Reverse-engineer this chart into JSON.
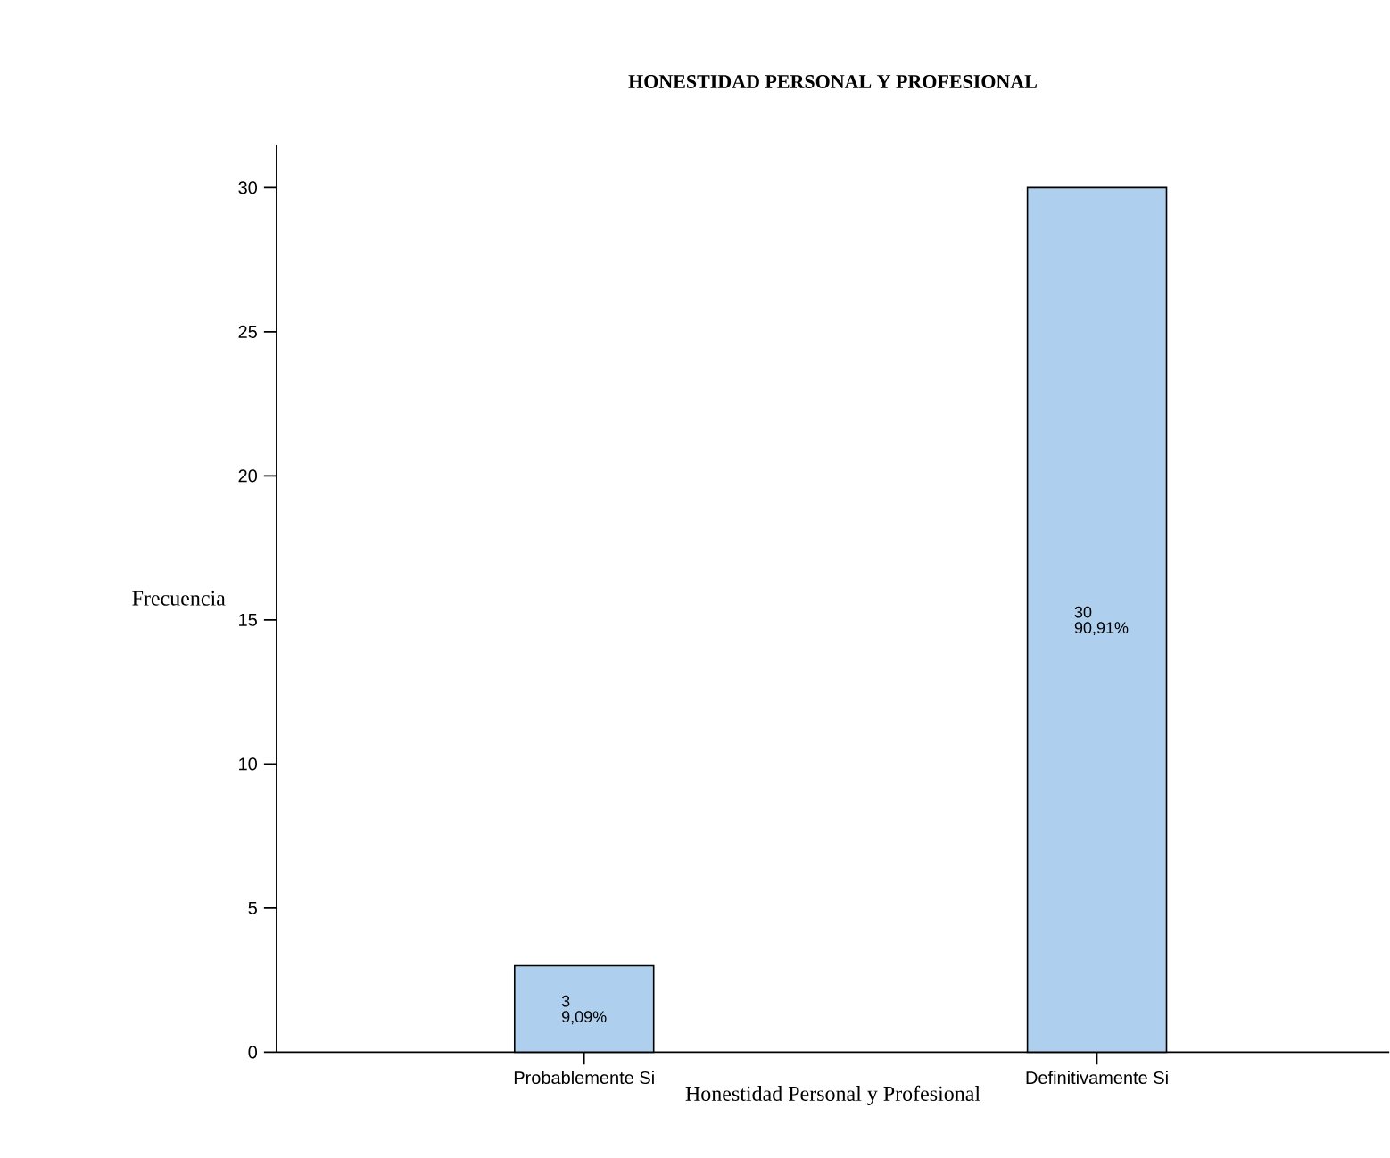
{
  "chart_data": {
    "type": "bar",
    "title": "HONESTIDAD PERSONAL Y PROFESIONAL",
    "xlabel": "Honestidad Personal y Profesional",
    "ylabel": "Frecuencia",
    "categories": [
      "Probablemente Si",
      "Definitivamente Si"
    ],
    "values": [
      3,
      30
    ],
    "color": "#aed0ee",
    "ylim": [
      0,
      31.5
    ],
    "yticks": [
      0,
      5,
      10,
      15,
      20,
      25,
      30
    ],
    "data_labels": true,
    "annotations": [
      "9,09%",
      "90,91%"
    ]
  }
}
